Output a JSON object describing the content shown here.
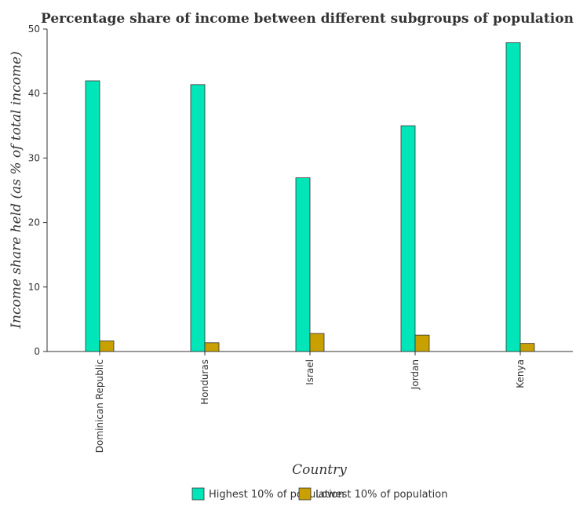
{
  "chart_data": {
    "type": "bar",
    "title": "Percentage share of income between different subgroups of population of countr",
    "xlabel": "Country",
    "ylabel": "Income share held (as % of total income)",
    "categories": [
      "Dominican Republic",
      "Honduras",
      "Israel",
      "Jordan",
      "Kenya"
    ],
    "series": [
      {
        "name": "Highest 10% of population",
        "values": [
          41.97,
          41.38,
          26.93,
          35.0,
          47.88
        ],
        "color": "#00e6b8"
      },
      {
        "name": "Lowest 10% of population",
        "values": [
          1.64,
          1.36,
          2.8,
          2.54,
          1.26
        ],
        "color": "#c8a000"
      }
    ],
    "ylim": [
      0,
      50
    ],
    "yticks": [
      0,
      10,
      20,
      30,
      40,
      50
    ],
    "grid": false,
    "legend": "bottom"
  }
}
